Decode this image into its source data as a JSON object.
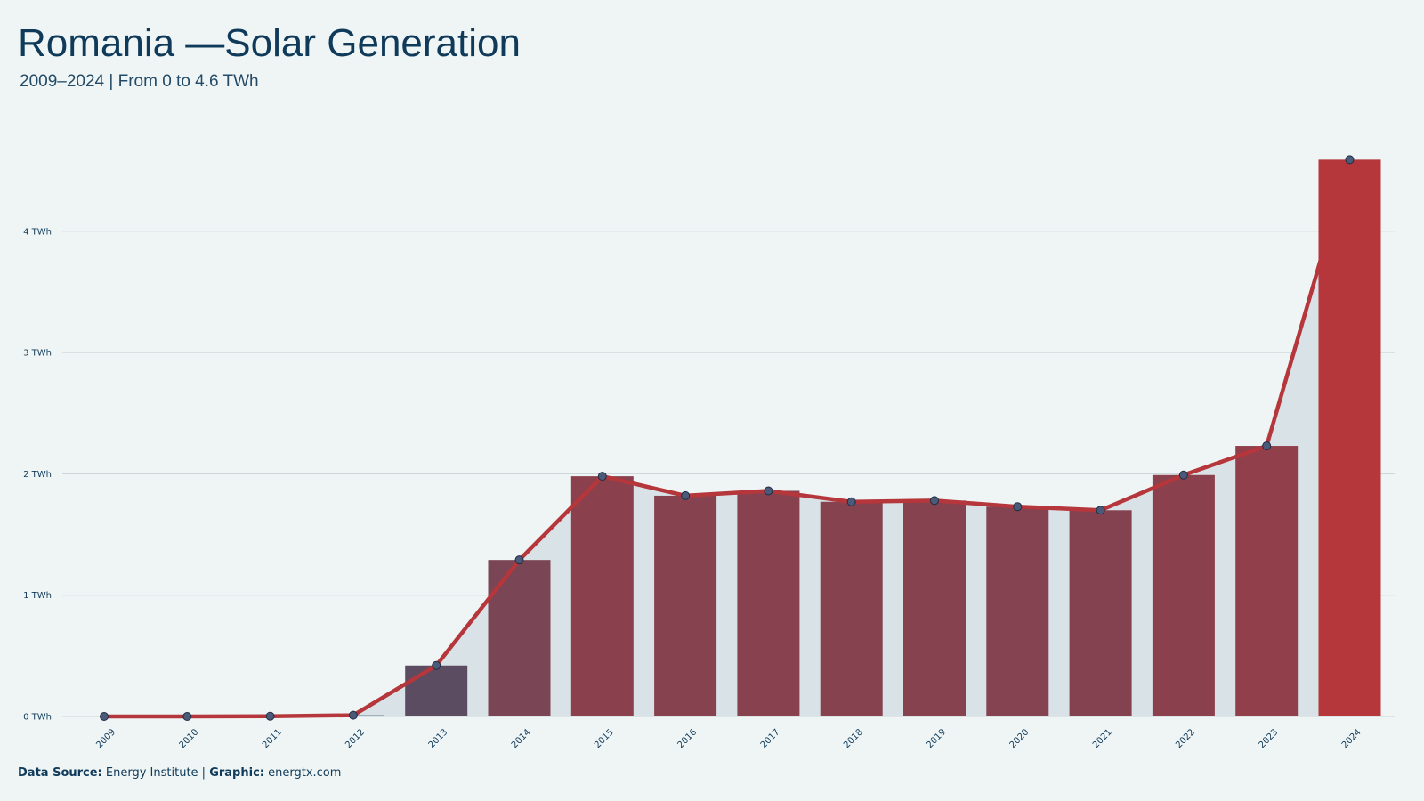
{
  "header": {
    "title": "Romania —Solar Generation",
    "subtitle": "2009–2024 | From 0 to 4.6 TWh"
  },
  "footer": {
    "source_label": "Data Source:",
    "source_value": "Energy Institute |",
    "graphic_label": "Graphic:",
    "graphic_value": "energtx.com"
  },
  "colors": {
    "background": "#eff5f5",
    "line": "#b5363b",
    "area": "#d9e3e7",
    "text": "#0f3a5a",
    "bar_low": "#2e5875",
    "bar_high": "#b5363b",
    "marker": "#4a5a78"
  },
  "chart_data": {
    "type": "bar",
    "title": "Romania —Solar Generation",
    "subtitle": "2009–2024 | From 0 to 4.6 TWh",
    "xlabel": "",
    "ylabel": "",
    "categories": [
      "2009",
      "2010",
      "2011",
      "2012",
      "2013",
      "2014",
      "2015",
      "2016",
      "2017",
      "2018",
      "2019",
      "2020",
      "2021",
      "2022",
      "2023",
      "2024"
    ],
    "values": [
      0,
      0,
      0.002,
      0.01,
      0.42,
      1.29,
      1.98,
      1.82,
      1.86,
      1.77,
      1.78,
      1.73,
      1.7,
      1.99,
      2.23,
      4.59
    ],
    "overlay": "line with area fill and circular markers",
    "ylim": [
      0,
      4.6
    ],
    "yticks": [
      0,
      1,
      2,
      3,
      4
    ],
    "ytick_labels": [
      "0 TWh",
      "1 TWh",
      "2 TWh",
      "3 TWh",
      "4 TWh"
    ],
    "grid": "horizontal",
    "legend": "none"
  }
}
